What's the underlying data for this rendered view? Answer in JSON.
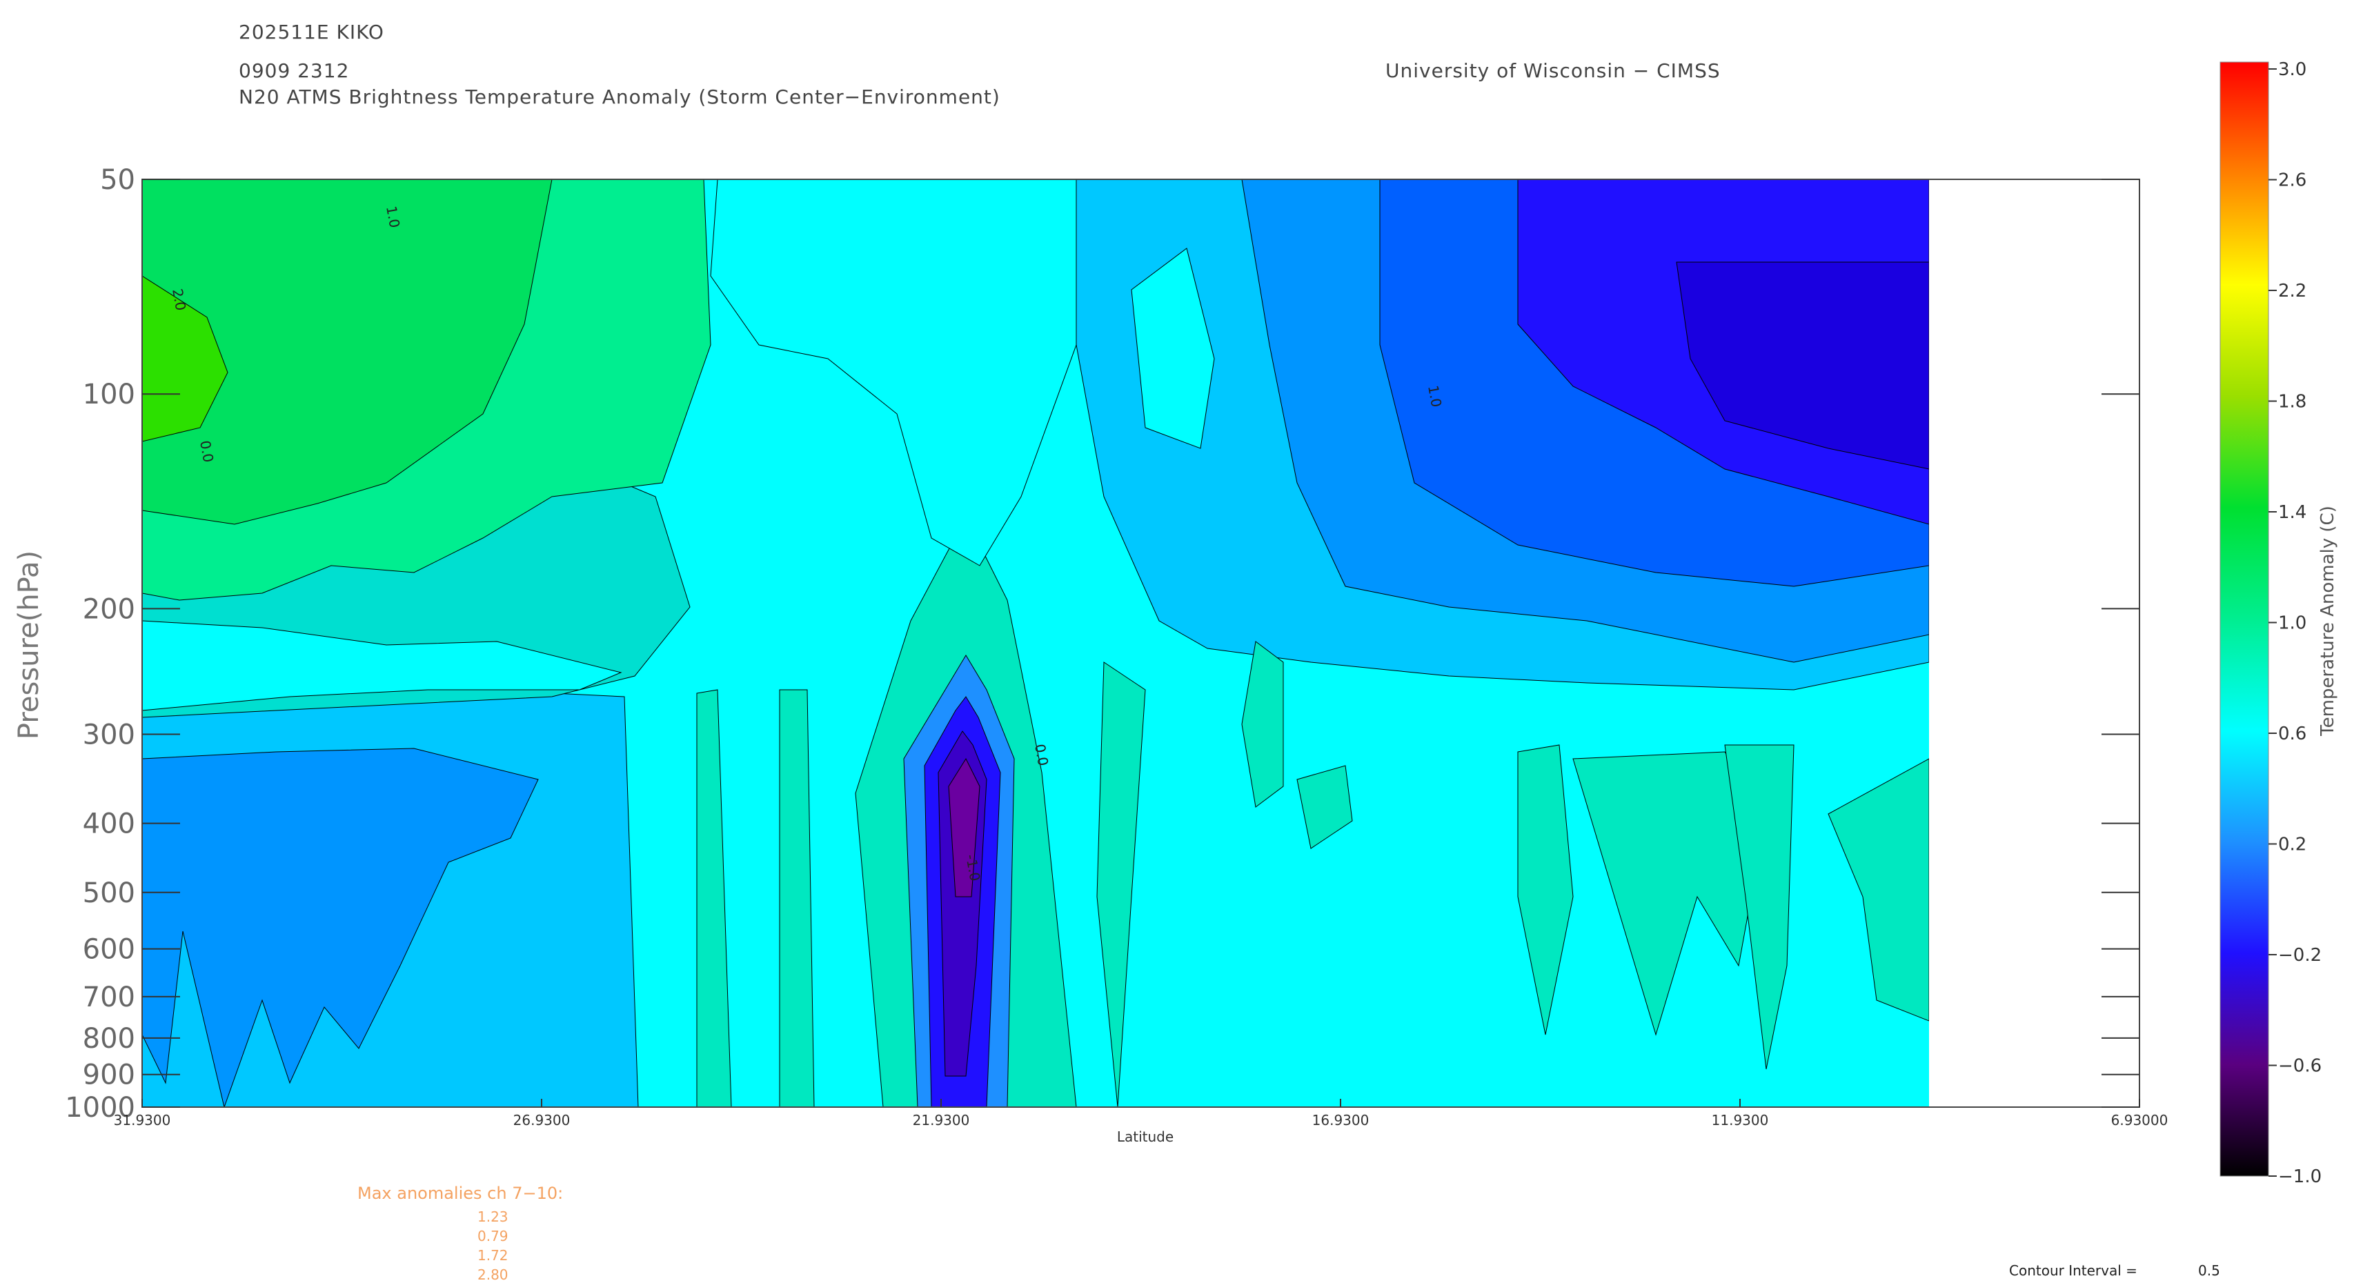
{
  "header": {
    "storm_id": "202511E KIKO",
    "datetime": "0909 2312",
    "product": "N20 ATMS Brightness Temperature Anomaly (Storm Center−Environment)",
    "institution": "University of Wisconsin − CIMSS"
  },
  "max_anomalies": {
    "label": "Max anomalies ch 7−10:",
    "values": [
      "1.23",
      "0.79",
      "1.72",
      "2.80"
    ]
  },
  "contour_interval": {
    "label": "Contour Interval =",
    "value": "0.5"
  },
  "chart_data": {
    "type": "heatmap",
    "title": "N20 ATMS Brightness Temperature Anomaly (Storm Center−Environment)",
    "xlabel": "Latitude",
    "ylabel": "Pressure(hPa)",
    "x_ticks": [
      "31.9300",
      "26.9300",
      "21.9300",
      "16.9300",
      "11.9300",
      "6.93000"
    ],
    "x_range": [
      31.93,
      6.93
    ],
    "data_x_extent": [
      31.93,
      9.6
    ],
    "y_ticks": [
      50,
      100,
      200,
      300,
      400,
      500,
      600,
      700,
      800,
      900,
      1000
    ],
    "y_scale": "log",
    "y_range": [
      1000,
      50
    ],
    "colorbar": {
      "label": "Temperature Anomaly (C)",
      "ticks": [
        "3.0",
        "2.6",
        "2.2",
        "1.8",
        "1.4",
        "1.0",
        "0.6",
        "0.2",
        "−0.2",
        "−0.6",
        "−1.0"
      ],
      "range": [
        -1.0,
        3.0
      ]
    },
    "contour_interval": 0.5,
    "contour_labels": [
      "2.0",
      "1.0",
      "0.0",
      "-1.0",
      "0.0",
      "1.0"
    ],
    "key_features": [
      {
        "name": "upper-level warm region",
        "lat_range": [
          31.93,
          25.0
        ],
        "pressure_range": [
          50,
          200
        ],
        "max_anomaly": 1.3
      },
      {
        "name": "mid-level cold core",
        "lat_center": 21.9,
        "pressure_range": [
          250,
          1000
        ],
        "min_anomaly": -0.6
      },
      {
        "name": "upper-level cold region",
        "lat_range": [
          14.0,
          9.6
        ],
        "pressure_range": [
          50,
          200
        ],
        "min_anomaly": -0.1
      }
    ]
  }
}
